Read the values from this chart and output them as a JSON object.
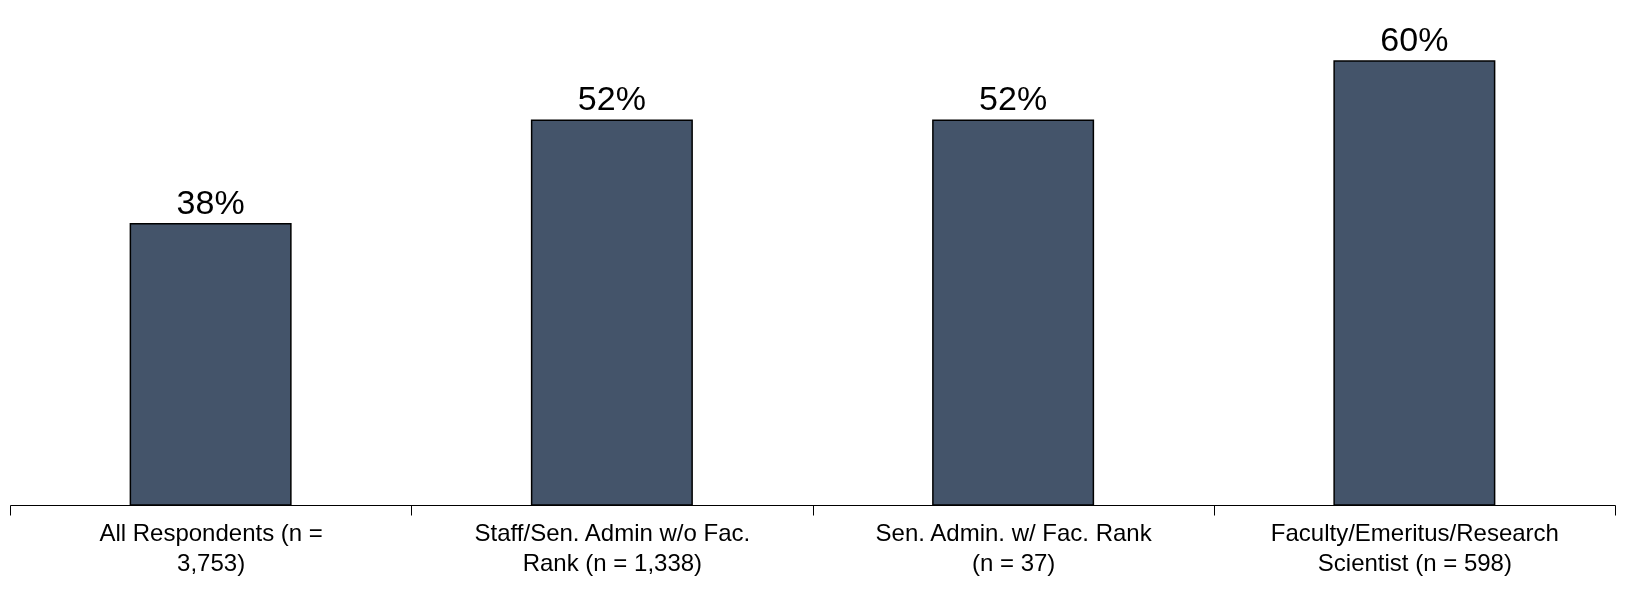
{
  "chart_data": {
    "type": "bar",
    "categories": [
      "All Respondents (n = 3,753)",
      "Staff/Sen. Admin w/o Fac. Rank (n = 1,338)",
      "Sen. Admin. w/ Fac. Rank (n = 37)",
      "Faculty/Emeritus/Research Scientist (n = 598)"
    ],
    "values": [
      38,
      52,
      52,
      60
    ],
    "color": "#44546a",
    "value_labels": [
      "38%",
      "52%",
      "52%",
      "60%"
    ],
    "grid": false
  }
}
